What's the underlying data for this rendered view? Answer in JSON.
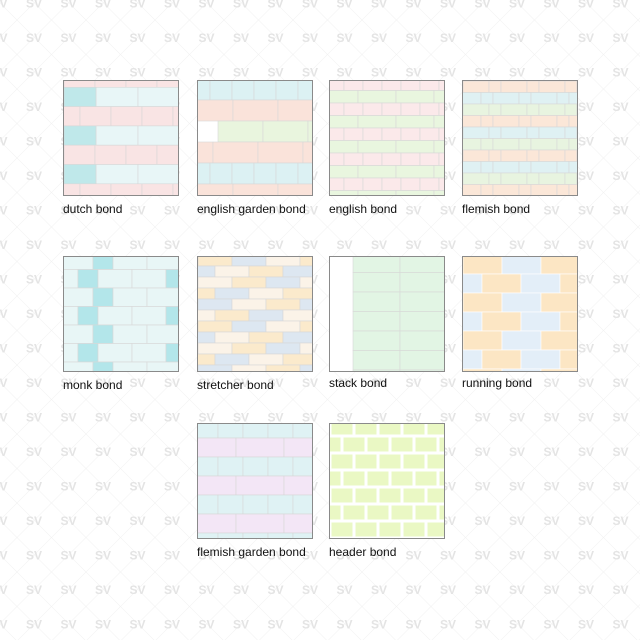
{
  "watermark": {
    "text": "SV",
    "color": "#e4e4e4"
  },
  "swatches": [
    {
      "label": "dutch bond",
      "type": "dutch",
      "colors": [
        "#f9e4e4",
        "#e8f6f7",
        "#bfe8ea"
      ]
    },
    {
      "label": "english garden bond",
      "type": "englishgarden",
      "colors": [
        "#dcf1f3",
        "#fae3da",
        "#e9f5de"
      ]
    },
    {
      "label": "english bond",
      "type": "english",
      "colors": [
        "#fbe9ea",
        "#e9f6df"
      ]
    },
    {
      "label": "flemish bond",
      "type": "flemish",
      "colors": [
        "#fbe7d8",
        "#dff1f3",
        "#e8f4e0"
      ]
    },
    {
      "label": "monk bond",
      "type": "monk",
      "colors": [
        "#e8f6f6",
        "#b3e6ea"
      ]
    },
    {
      "label": "stretcher bond",
      "type": "stretcher",
      "colors": [
        "#fbeacc",
        "#dde7f1",
        "#fbf3e8"
      ]
    },
    {
      "label": "stack bond",
      "type": "stack",
      "colors": [
        "#e2f5e4"
      ]
    },
    {
      "label": "running bond",
      "type": "running",
      "colors": [
        "#fce6c4",
        "#e3eef8"
      ]
    },
    {
      "label": "flemish garden bond",
      "type": "flemishgarden",
      "colors": [
        "#dff2f4",
        "#f3e6f6"
      ]
    },
    {
      "label": "header bond",
      "type": "header",
      "colors": [
        "#eaf8c4"
      ]
    }
  ]
}
